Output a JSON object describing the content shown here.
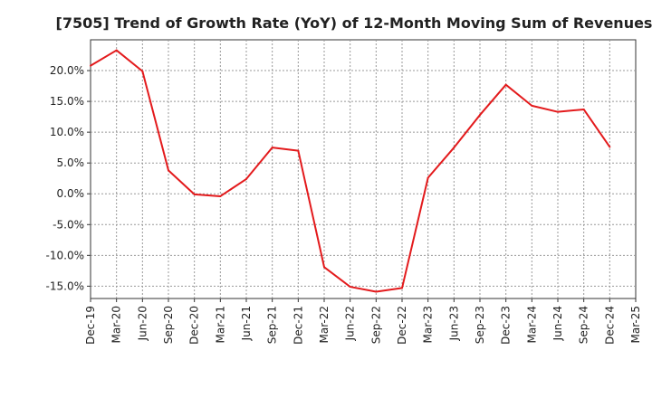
{
  "chart_data": {
    "type": "line",
    "title": "[7505]  Trend of Growth Rate (YoY) of 12-Month Moving Sum of Revenues",
    "xlabel": "",
    "ylabel": "",
    "x": [
      "Dec-19",
      "Mar-20",
      "Jun-20",
      "Sep-20",
      "Dec-20",
      "Mar-21",
      "Jun-21",
      "Sep-21",
      "Dec-21",
      "Mar-22",
      "Jun-22",
      "Sep-22",
      "Dec-22",
      "Mar-23",
      "Jun-23",
      "Sep-23",
      "Dec-23",
      "Mar-24",
      "Jun-24",
      "Sep-24",
      "Dec-24",
      "Mar-25"
    ],
    "series": [
      {
        "color": "#e31a1c",
        "values": [
          20.8,
          23.3,
          19.9,
          3.8,
          -0.1,
          -0.4,
          2.4,
          7.5,
          7.0,
          -11.9,
          -15.1,
          -15.9,
          -15.3,
          2.6,
          7.5,
          12.8,
          17.7,
          14.3,
          13.3,
          13.7,
          7.6,
          null
        ]
      }
    ],
    "yticks": [
      "20.0%",
      "15.0%",
      "10.0%",
      "5.0%",
      "0.0%",
      "-5.0%",
      "-10.0%",
      "-15.0%"
    ],
    "ytick_values": [
      20,
      15,
      10,
      5,
      0,
      -5,
      -10,
      -15
    ],
    "ylim": [
      -17,
      25
    ],
    "grid": true,
    "legend": "none"
  }
}
